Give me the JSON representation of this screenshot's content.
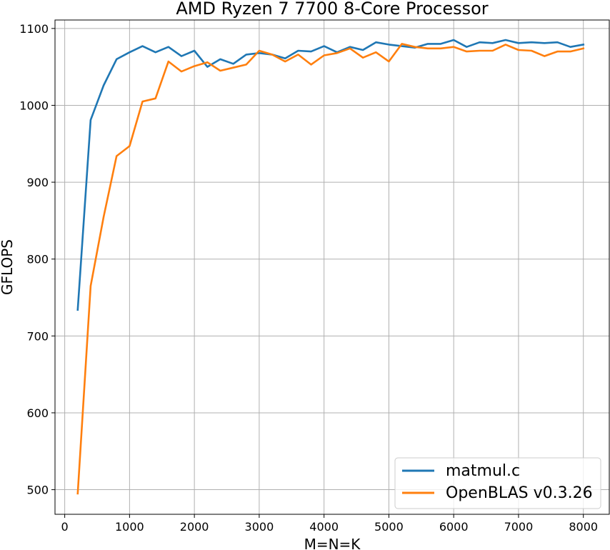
{
  "chart_data": {
    "type": "line",
    "title": "AMD Ryzen 7 7700 8-Core Processor",
    "xlabel": "M=N=K",
    "ylabel": "GFLOPS",
    "xlim": [
      -150,
      8400
    ],
    "ylim": [
      468,
      1111
    ],
    "xticks": [
      0,
      1000,
      2000,
      3000,
      4000,
      5000,
      6000,
      7000,
      8000
    ],
    "yticks": [
      500,
      600,
      700,
      800,
      900,
      1000,
      1100
    ],
    "grid": true,
    "legend_position": "lower-right",
    "x": [
      200,
      400,
      600,
      800,
      1000,
      1200,
      1400,
      1600,
      1800,
      2000,
      2200,
      2400,
      2600,
      2800,
      3000,
      3200,
      3400,
      3600,
      3800,
      4000,
      4200,
      4400,
      4600,
      4800,
      5000,
      5200,
      5400,
      5600,
      5800,
      6000,
      6200,
      6400,
      6600,
      6800,
      7000,
      7200,
      7400,
      7600,
      7800,
      8000
    ],
    "series": [
      {
        "name": "matmul.c",
        "color": "#1f77b4",
        "values": [
          734,
          981,
          1026,
          1060,
          1069,
          1077,
          1069,
          1076,
          1064,
          1071,
          1050,
          1060,
          1054,
          1066,
          1068,
          1066,
          1061,
          1071,
          1070,
          1077,
          1069,
          1076,
          1072,
          1082,
          1079,
          1077,
          1075,
          1080,
          1080,
          1085,
          1076,
          1082,
          1081,
          1085,
          1081,
          1082,
          1081,
          1082,
          1076,
          1079
        ]
      },
      {
        "name": "OpenBLAS v0.3.26",
        "color": "#ff7f0e",
        "values": [
          495,
          765,
          855,
          934,
          947,
          1005,
          1009,
          1057,
          1044,
          1051,
          1056,
          1045,
          1049,
          1053,
          1071,
          1066,
          1057,
          1066,
          1053,
          1065,
          1068,
          1074,
          1062,
          1069,
          1057,
          1080,
          1076,
          1074,
          1074,
          1076,
          1070,
          1071,
          1071,
          1079,
          1072,
          1071,
          1064,
          1070,
          1070,
          1074
        ]
      }
    ]
  }
}
